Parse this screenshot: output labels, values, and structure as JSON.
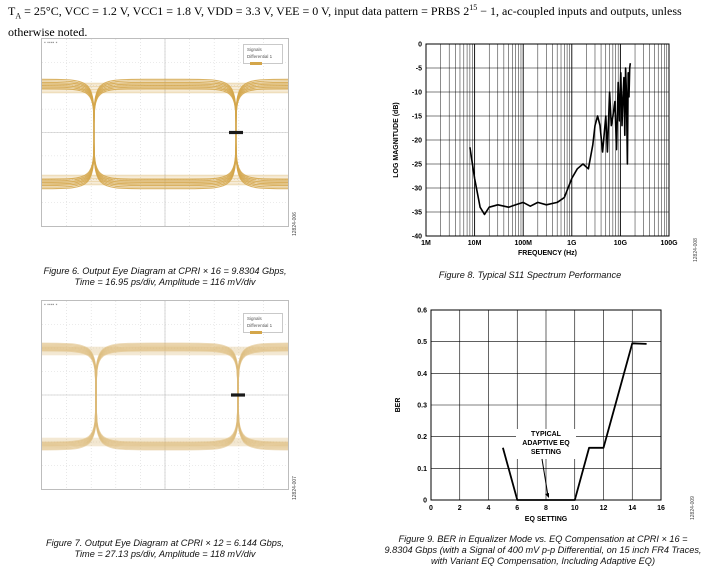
{
  "intro": {
    "pre": "T",
    "sub_a": "A",
    "text1": " = 25°C, VCC = 1.2 V, VCC1 = 1.8 V, VDD = 3.3 V, VEE = 0 V, input data pattern = PRBS 2",
    "sup": "15",
    "text2": " − 1, ac-coupled inputs and outputs, unless otherwise noted."
  },
  "fig6": {
    "legend_line1": "Signals",
    "legend_line2": "Differential 1",
    "caption_line1": "Figure 6. Output Eye Diagram at CPRI × 16 = 9.8304 Gbps,",
    "caption_line2": "Time = 16.95 ps/div, Amplitude = 116 mV/div",
    "side_code": "12824-006",
    "eye_color": "#d4a64a"
  },
  "fig7": {
    "legend_line1": "Signals",
    "legend_line2": "Differential 1",
    "caption_line1": "Figure 7. Output Eye Diagram at CPRI × 12 = 6.144 Gbps,",
    "caption_line2": "Time = 27.13 ps/div, Amplitude = 118 mV/div",
    "side_code": "12824-007",
    "eye_color": "#dcb978"
  },
  "fig8": {
    "caption": "Figure 8. Typical S11 Spectrum Performance",
    "side_code": "12824-008"
  },
  "fig9": {
    "caption_line1": "Figure 9. BER in Equalizer Mode vs. EQ Compensation at CPRI × 16 =",
    "caption_line2": "9.8304 Gbps (with a Signal of 400 mV p-p Differential, on 15 inch FR4 Traces,",
    "caption_line3": "with Variant EQ Compensation, Including Adaptive EQ)",
    "side_code": "12824-009"
  },
  "chart_data": [
    {
      "type": "line",
      "xlabel": "FREQUENCY (Hz)",
      "ylabel": "LOG MAGNITUDE (dB)",
      "xscale": "log",
      "xlim": [
        1000000,
        100000000000
      ],
      "ylim": [
        -40,
        0
      ],
      "x_ticks": [
        "1M",
        "10M",
        "100M",
        "1G",
        "10G",
        "100G"
      ],
      "y_ticks": [
        "0",
        "-5",
        "-10",
        "-15",
        "-20",
        "-25",
        "-30",
        "-35",
        "-40"
      ],
      "grid": true,
      "series": [
        {
          "x": [
            8000000,
            10000000,
            13000000,
            16000000,
            20000000,
            30000000,
            50000000,
            70000000,
            100000000,
            140000000,
            200000000,
            300000000,
            500000000,
            700000000,
            1000000000,
            1300000000,
            1700000000,
            2200000000,
            2700000000,
            3000000000,
            3400000000,
            3800000000,
            4300000000,
            5000000000,
            5400000000,
            6000000000,
            6500000000,
            7000000000,
            7700000000,
            8300000000,
            9000000000,
            9600000000,
            10200000000,
            10800000000,
            11300000000,
            11800000000,
            12300000000,
            12800000000,
            13300000000,
            13900000000,
            14500000000,
            15000000000,
            15500000000,
            16000000000
          ],
          "y": [
            -21.5,
            -28,
            -34,
            -35.5,
            -34,
            -33.5,
            -34,
            -33.5,
            -33,
            -33.8,
            -33,
            -33.5,
            -33,
            -32,
            -28,
            -26,
            -25,
            -26,
            -21,
            -17,
            -15,
            -17,
            -22.5,
            -15,
            -22.5,
            -10,
            -17,
            -15,
            -12,
            -22,
            -8,
            -16,
            -6,
            -17,
            -11,
            -7,
            -19,
            -5,
            -10,
            -25,
            -6,
            -11,
            -5,
            -4
          ]
        }
      ]
    },
    {
      "type": "line",
      "xlabel": "EQ SETTING",
      "ylabel": "BER",
      "xlim": [
        0,
        16
      ],
      "ylim": [
        0,
        0.6
      ],
      "x_ticks": [
        "0",
        "2",
        "4",
        "6",
        "8",
        "10",
        "12",
        "14",
        "16"
      ],
      "y_ticks": [
        "0",
        "0.1",
        "0.2",
        "0.3",
        "0.4",
        "0.5",
        "0.6"
      ],
      "grid": true,
      "series": [
        {
          "x": [
            5,
            6,
            7,
            8,
            9,
            10,
            11,
            12,
            13,
            14,
            15
          ],
          "y": [
            0.165,
            0,
            0,
            0,
            0,
            0,
            0.165,
            0.165,
            0.33,
            0.495,
            0.493
          ]
        }
      ],
      "annotations": [
        {
          "text": [
            "TYPICAL",
            "ADAPTIVE EQ",
            "SETTING"
          ],
          "x": 8
        }
      ]
    }
  ]
}
